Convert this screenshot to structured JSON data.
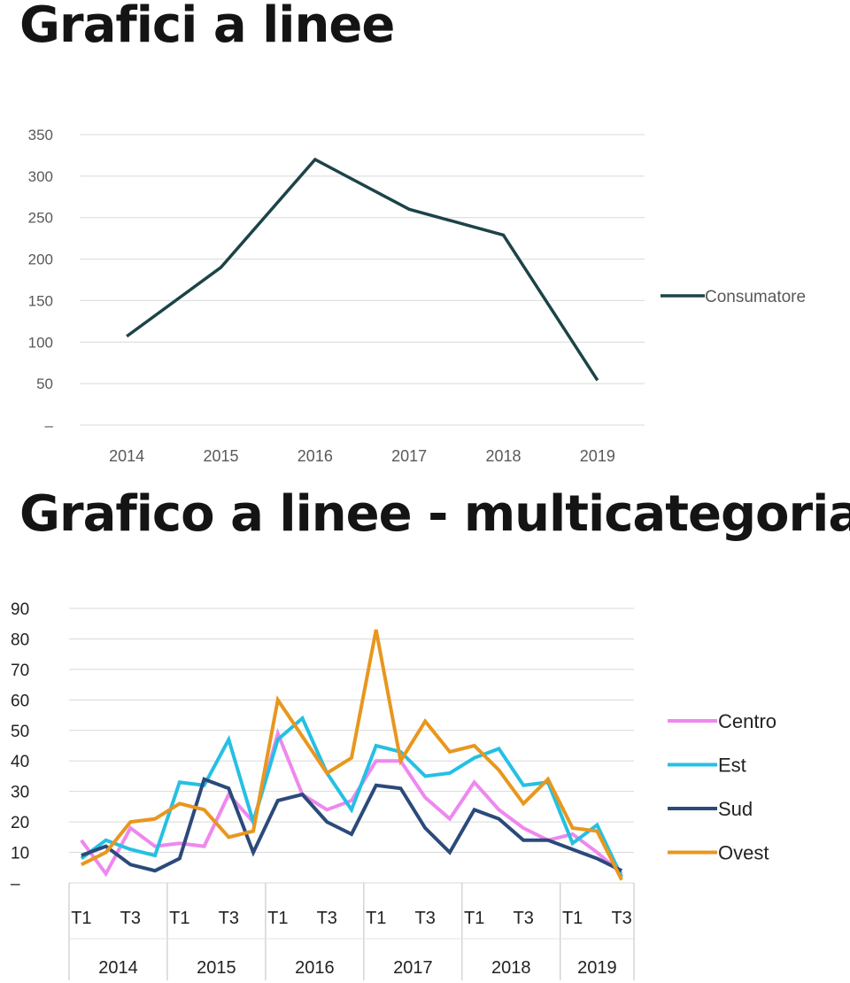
{
  "titles": {
    "chart1": "Grafici a linee",
    "chart2": "Grafico a linee - multicategoria"
  },
  "chart_data": [
    {
      "type": "line",
      "title": "Grafici a linee",
      "categories": [
        "2014",
        "2015",
        "2016",
        "2017",
        "2018",
        "2019"
      ],
      "series": [
        {
          "name": "Consumatore",
          "values": [
            107,
            190,
            320,
            260,
            229,
            54
          ],
          "color": "#1c4448"
        }
      ],
      "y_ticks": [
        "–",
        "50",
        "100",
        "150",
        "200",
        "250",
        "300",
        "350"
      ],
      "ylim": [
        0,
        350
      ],
      "grid": true,
      "legend": "right"
    },
    {
      "type": "line",
      "title": "Grafico a linee - multicategoria",
      "categories": [
        "2014 T1",
        "2014 T2",
        "2014 T3",
        "2014 T4",
        "2015 T1",
        "2015 T2",
        "2015 T3",
        "2015 T4",
        "2016 T1",
        "2016 T2",
        "2016 T3",
        "2016 T4",
        "2017 T1",
        "2017 T2",
        "2017 T3",
        "2017 T4",
        "2018 T1",
        "2018 T2",
        "2018 T3",
        "2018 T4",
        "2019 T1",
        "2019 T2",
        "2019 T3"
      ],
      "x_tick_labels": [
        "T1",
        "",
        "T3",
        "",
        "T1",
        "",
        "T3",
        "",
        "T1",
        "",
        "T3",
        "",
        "T1",
        "",
        "T3",
        "",
        "T1",
        "",
        "T3",
        "",
        "T1",
        "",
        "T3"
      ],
      "year_groups": [
        {
          "label": "2014",
          "count": 4
        },
        {
          "label": "2015",
          "count": 4
        },
        {
          "label": "2016",
          "count": 4
        },
        {
          "label": "2017",
          "count": 4
        },
        {
          "label": "2018",
          "count": 4
        },
        {
          "label": "2019",
          "count": 3
        }
      ],
      "series": [
        {
          "name": "Centro",
          "color": "#ee88ee",
          "values": [
            14,
            3,
            18,
            12,
            13,
            12,
            29,
            20,
            49,
            29,
            24,
            27,
            40,
            40,
            28,
            21,
            33,
            24,
            18,
            14,
            16,
            10,
            3
          ]
        },
        {
          "name": "Est",
          "color": "#25c0e2",
          "values": [
            8,
            14,
            11,
            9,
            33,
            32,
            47,
            20,
            47,
            54,
            36,
            24,
            45,
            43,
            35,
            36,
            41,
            44,
            32,
            33,
            13,
            19,
            2
          ]
        },
        {
          "name": "Sud",
          "color": "#2b4a7a",
          "values": [
            9,
            12,
            6,
            4,
            8,
            34,
            31,
            10,
            27,
            29,
            20,
            16,
            32,
            31,
            18,
            10,
            24,
            21,
            14,
            14,
            11,
            8,
            4
          ]
        },
        {
          "name": "Ovest",
          "color": "#e8971e",
          "values": [
            6,
            10,
            20,
            21,
            26,
            24,
            15,
            17,
            60,
            48,
            36,
            41,
            83,
            40,
            53,
            43,
            45,
            37,
            26,
            34,
            18,
            17,
            1
          ]
        }
      ],
      "y_ticks": [
        "–",
        "10",
        "20",
        "30",
        "40",
        "50",
        "60",
        "70",
        "80",
        "90"
      ],
      "ylim": [
        0,
        90
      ],
      "grid": true,
      "legend": "right"
    }
  ]
}
